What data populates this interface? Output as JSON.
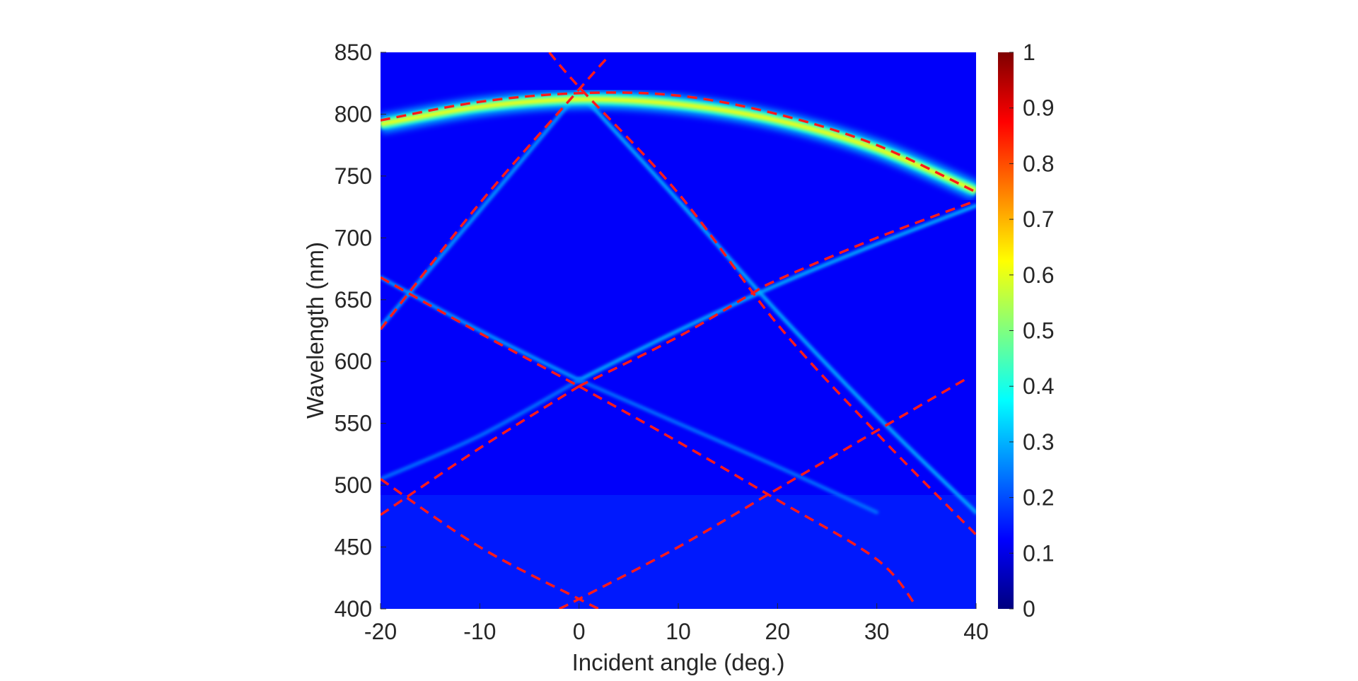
{
  "chart_data": {
    "type": "heatmap",
    "xlabel": "Incident angle (deg.)",
    "ylabel": "Wavelength (nm)",
    "xlim": [
      -20,
      40
    ],
    "ylim": [
      400,
      850
    ],
    "x_ticks": [
      -20,
      -10,
      0,
      10,
      20,
      30,
      40
    ],
    "x_tick_labels": [
      "-20",
      "-10",
      "0",
      "10",
      "20",
      "30",
      "40"
    ],
    "y_ticks": [
      400,
      450,
      500,
      550,
      600,
      650,
      700,
      750,
      800,
      850
    ],
    "y_tick_labels": [
      "400",
      "450",
      "500",
      "550",
      "600",
      "650",
      "700",
      "750",
      "800",
      "850"
    ],
    "colorbar": {
      "colormap": "jet",
      "range": [
        0,
        1
      ],
      "ticks": [
        0,
        0.1,
        0.2,
        0.3,
        0.4,
        0.5,
        0.6,
        0.7,
        0.8,
        0.9,
        1
      ],
      "tick_labels": [
        "0",
        "0.1",
        "0.2",
        "0.3",
        "0.4",
        "0.5",
        "0.6",
        "0.7",
        "0.8",
        "0.9",
        "1"
      ]
    },
    "background_level": 0.12,
    "bright_band": {
      "peak_level": 0.6,
      "points": [
        [
          -20,
          792
        ],
        [
          -10,
          806
        ],
        [
          0,
          812
        ],
        [
          10,
          808
        ],
        [
          20,
          795
        ],
        [
          30,
          772
        ],
        [
          40,
          738
        ]
      ]
    },
    "faint_bands": [
      {
        "level": 0.28,
        "points": [
          [
            -20,
            628
          ],
          [
            -10,
            722
          ],
          [
            0,
            818
          ]
        ]
      },
      {
        "level": 0.3,
        "points": [
          [
            0,
            818
          ],
          [
            10,
            730
          ],
          [
            20,
            640
          ],
          [
            30,
            556
          ],
          [
            40,
            478
          ]
        ]
      },
      {
        "level": 0.28,
        "points": [
          [
            -20,
            668
          ],
          [
            -10,
            625
          ],
          [
            0,
            585
          ]
        ]
      },
      {
        "level": 0.3,
        "points": [
          [
            0,
            585
          ],
          [
            10,
            625
          ],
          [
            20,
            662
          ],
          [
            30,
            695
          ],
          [
            40,
            726
          ]
        ]
      },
      {
        "level": 0.24,
        "points": [
          [
            -20,
            505
          ],
          [
            -10,
            540
          ],
          [
            0,
            585
          ]
        ]
      },
      {
        "level": 0.24,
        "points": [
          [
            0,
            585
          ],
          [
            10,
            550
          ],
          [
            20,
            515
          ],
          [
            30,
            478
          ]
        ]
      }
    ],
    "dashed_lines": {
      "color": "#ff1a1a",
      "curves": [
        {
          "points": [
            [
              -20,
              795
            ],
            [
              -10,
              810
            ],
            [
              0,
              817
            ],
            [
              10,
              815
            ],
            [
              20,
              800
            ],
            [
              30,
              775
            ],
            [
              40,
              737
            ]
          ]
        },
        {
          "points": [
            [
              -20,
              626
            ],
            [
              -10,
              728
            ],
            [
              0,
              820
            ],
            [
              3,
              847
            ]
          ]
        },
        {
          "points": [
            [
              -3,
              850
            ],
            [
              0,
              822
            ],
            [
              10,
              736
            ],
            [
              20,
              630
            ],
            [
              30,
              542
            ],
            [
              40,
              460
            ]
          ]
        },
        {
          "points": [
            [
              -20,
              668
            ],
            [
              -10,
              623
            ],
            [
              0,
              580
            ]
          ]
        },
        {
          "points": [
            [
              0,
              580
            ],
            [
              10,
              620
            ],
            [
              17,
              653
            ],
            [
              20,
              666
            ],
            [
              30,
              700
            ],
            [
              40,
              730
            ]
          ]
        },
        {
          "points": [
            [
              -20,
              476
            ],
            [
              -10,
              530
            ],
            [
              0,
              580
            ]
          ]
        },
        {
          "points": [
            [
              0,
              580
            ],
            [
              10,
              535
            ],
            [
              20,
              488
            ],
            [
              30,
              440
            ],
            [
              34,
              402
            ]
          ]
        },
        {
          "points": [
            [
              -20,
              505
            ],
            [
              -10,
              450
            ],
            [
              0,
              408
            ],
            [
              2,
              400
            ]
          ]
        },
        {
          "points": [
            [
              -2,
              400
            ],
            [
              0,
              408
            ],
            [
              10,
              450
            ],
            [
              20,
              497
            ],
            [
              30,
              544
            ],
            [
              39,
              586
            ]
          ]
        }
      ]
    }
  }
}
